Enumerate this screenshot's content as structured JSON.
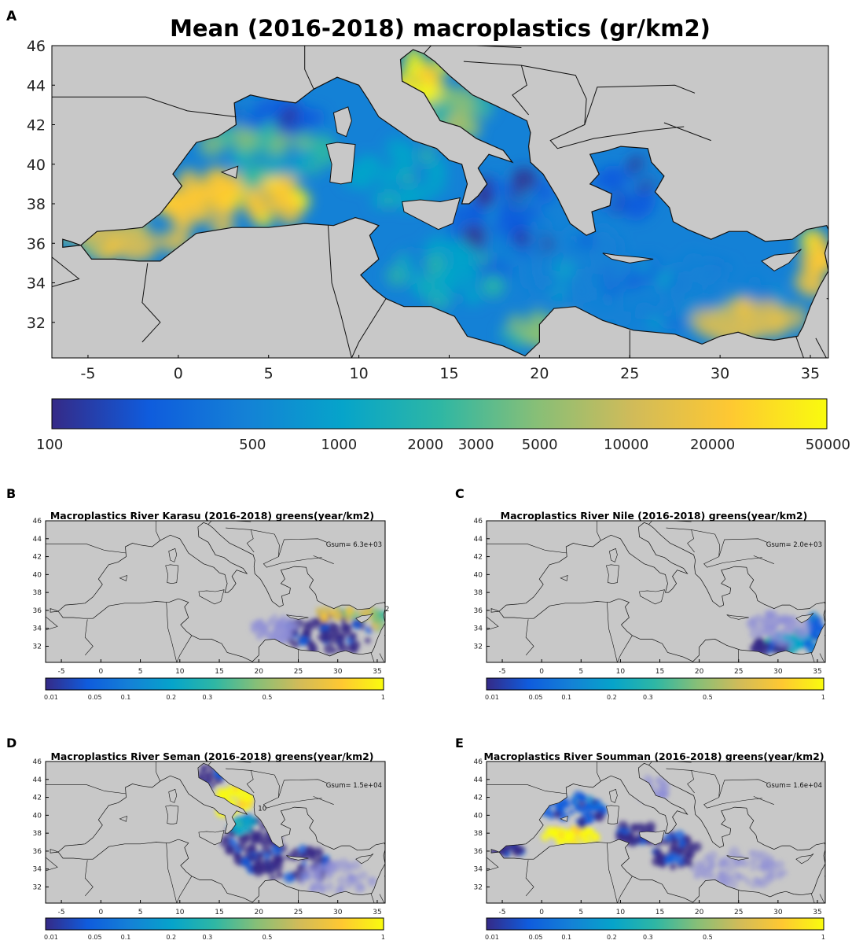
{
  "figure": {
    "panels": [
      {
        "letter": "A",
        "title": "Mean (2016-2018) macroplastics (gr/km2)",
        "gsum": "",
        "map_extent": {
          "lon": [
            -7,
            36
          ],
          "lat": [
            30.2,
            46
          ]
        },
        "y_ticks": [
          "46",
          "44",
          "42",
          "40",
          "38",
          "36",
          "34",
          "32"
        ],
        "x_ticks": [
          "-5",
          "0",
          "5",
          "10",
          "15",
          "20",
          "25",
          "30",
          "35"
        ],
        "colorbar": {
          "scale": "log",
          "range": [
            100,
            50000
          ],
          "tick_labels": [
            "100",
            "500",
            "1000",
            "2000",
            "3000",
            "5000",
            "10000",
            "20000",
            "50000"
          ]
        },
        "field": "whole-basin"
      },
      {
        "letter": "B",
        "title": "Macroplastics River Karasu (2016-2018) greens(year/km2)",
        "gsum": "Gsum= 6.3e+03",
        "map_extent": {
          "lon": [
            -7,
            36
          ],
          "lat": [
            30.2,
            46
          ]
        },
        "y_ticks": [
          "46",
          "44",
          "42",
          "40",
          "38",
          "36",
          "34",
          "32"
        ],
        "x_ticks": [
          "-5",
          "0",
          "5",
          "10",
          "15",
          "20",
          "25",
          "30",
          "35"
        ],
        "colorbar": {
          "scale": "nonlinear",
          "range": [
            0.01,
            1
          ],
          "tick_labels": [
            "0.01",
            "0.05",
            "0.1",
            "0.2",
            "0.3",
            "0.5",
            "1"
          ]
        },
        "field": "eastern-levantine",
        "source_marker": "2"
      },
      {
        "letter": "C",
        "title": "Macroplastics River Nile (2016-2018) greens(year/km2)",
        "gsum": "Gsum= 2.0e+03",
        "map_extent": {
          "lon": [
            -7,
            36
          ],
          "lat": [
            30.2,
            46
          ]
        },
        "y_ticks": [
          "46",
          "44",
          "42",
          "40",
          "38",
          "36",
          "34",
          "32"
        ],
        "x_ticks": [
          "-5",
          "0",
          "5",
          "10",
          "15",
          "20",
          "25",
          "30",
          "35"
        ],
        "colorbar": {
          "scale": "nonlinear",
          "range": [
            0.01,
            1
          ],
          "tick_labels": [
            "0.01",
            "0.05",
            "0.1",
            "0.2",
            "0.3",
            "0.5",
            "1"
          ]
        },
        "field": "nile-plume"
      },
      {
        "letter": "D",
        "title": "Macroplastics River Seman (2016-2018) greens(year/km2)",
        "gsum": "Gsum= 1.5e+04",
        "map_extent": {
          "lon": [
            -7,
            36
          ],
          "lat": [
            30.2,
            46
          ]
        },
        "y_ticks": [
          "46",
          "44",
          "42",
          "40",
          "38",
          "36",
          "34",
          "32"
        ],
        "x_ticks": [
          "-5",
          "0",
          "5",
          "10",
          "15",
          "20",
          "25",
          "30",
          "35"
        ],
        "colorbar": {
          "scale": "nonlinear",
          "range": [
            0.01,
            1
          ],
          "tick_labels": [
            "0.01",
            "0.05",
            "0.1",
            "0.2",
            "0.3",
            "0.5",
            "1"
          ]
        },
        "field": "adriatic-ionian",
        "source_marker": "10"
      },
      {
        "letter": "E",
        "title": "Macroplastics River Soumman (2016-2018) greens(year/km2)",
        "gsum": "Gsum= 1.6e+04",
        "map_extent": {
          "lon": [
            -7,
            36
          ],
          "lat": [
            30.2,
            46
          ]
        },
        "y_ticks": [
          "46",
          "44",
          "42",
          "40",
          "38",
          "36",
          "34",
          "32"
        ],
        "x_ticks": [
          "-5",
          "0",
          "5",
          "10",
          "15",
          "20",
          "25",
          "30",
          "35"
        ],
        "colorbar": {
          "scale": "nonlinear",
          "range": [
            0.01,
            1
          ],
          "tick_labels": [
            "0.01",
            "0.05",
            "0.1",
            "0.2",
            "0.3",
            "0.5",
            "1"
          ]
        },
        "field": "western-basin"
      }
    ],
    "colors": {
      "land": "#c8c8c8",
      "coast": "#111111",
      "parula": [
        "#352a87",
        "#0f5cdd",
        "#1481d6",
        "#06a4ca",
        "#2eb7a4",
        "#87bf77",
        "#d1bb59",
        "#fec832",
        "#f9fb0e"
      ],
      "sparse": "#8f8fd8"
    }
  }
}
